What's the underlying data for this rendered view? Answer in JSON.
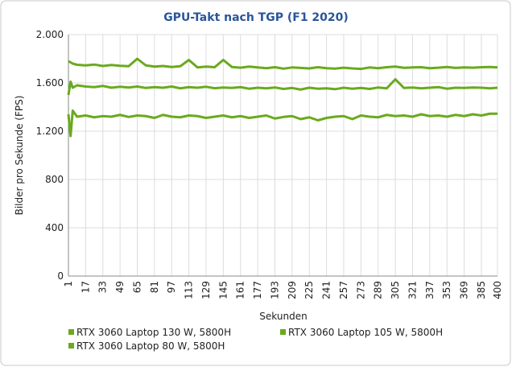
{
  "chart_data": {
    "type": "line",
    "title": "GPU-Takt nach TGP (F1 2020)",
    "x_label": "Sekunden",
    "y_label": "Bilder pro Sekunde (FPS)",
    "x": [
      1,
      3,
      5,
      9,
      17,
      25,
      33,
      41,
      49,
      57,
      65,
      73,
      81,
      89,
      97,
      105,
      113,
      121,
      129,
      137,
      145,
      153,
      161,
      169,
      177,
      185,
      193,
      201,
      209,
      217,
      225,
      233,
      241,
      249,
      257,
      265,
      273,
      281,
      289,
      297,
      305,
      313,
      321,
      329,
      337,
      345,
      353,
      361,
      369,
      377,
      385,
      393,
      400
    ],
    "series": [
      {
        "name": "RTX 3060 Laptop 130 W, 5800H",
        "color": "#6aaa1e",
        "values": [
          1780,
          1770,
          1760,
          1750,
          1745,
          1752,
          1740,
          1748,
          1742,
          1738,
          1800,
          1745,
          1735,
          1740,
          1732,
          1738,
          1790,
          1728,
          1735,
          1730,
          1790,
          1732,
          1726,
          1735,
          1728,
          1722,
          1730,
          1718,
          1728,
          1724,
          1720,
          1730,
          1722,
          1718,
          1726,
          1720,
          1716,
          1728,
          1722,
          1730,
          1735,
          1725,
          1728,
          1730,
          1722,
          1726,
          1732,
          1724,
          1728,
          1726,
          1730,
          1732,
          1728
        ]
      },
      {
        "name": "RTX 3060 Laptop 105 W, 5800H",
        "color": "#6aaa1e",
        "values": [
          1500,
          1610,
          1560,
          1580,
          1570,
          1565,
          1575,
          1560,
          1568,
          1562,
          1570,
          1558,
          1565,
          1560,
          1570,
          1555,
          1565,
          1560,
          1568,
          1556,
          1562,
          1558,
          1565,
          1552,
          1560,
          1555,
          1562,
          1550,
          1558,
          1545,
          1560,
          1552,
          1555,
          1548,
          1560,
          1552,
          1558,
          1550,
          1562,
          1555,
          1630,
          1558,
          1562,
          1555,
          1560,
          1565,
          1552,
          1560,
          1558,
          1562,
          1560,
          1555,
          1560
        ]
      },
      {
        "name": "RTX 3060 Laptop 80 W, 5800H",
        "color": "#6aaa1e",
        "values": [
          1340,
          1160,
          1370,
          1320,
          1330,
          1315,
          1325,
          1320,
          1335,
          1318,
          1330,
          1325,
          1310,
          1335,
          1320,
          1315,
          1330,
          1325,
          1310,
          1320,
          1330,
          1315,
          1325,
          1310,
          1320,
          1330,
          1305,
          1318,
          1325,
          1300,
          1315,
          1290,
          1310,
          1320,
          1325,
          1300,
          1330,
          1320,
          1315,
          1335,
          1325,
          1330,
          1320,
          1340,
          1325,
          1330,
          1320,
          1335,
          1325,
          1340,
          1330,
          1345,
          1345
        ]
      }
    ],
    "xlim": [
      1,
      400
    ],
    "xticks": [
      1,
      17,
      33,
      49,
      65,
      81,
      97,
      113,
      129,
      145,
      161,
      177,
      193,
      209,
      225,
      241,
      257,
      273,
      289,
      305,
      321,
      337,
      353,
      369,
      385,
      400
    ],
    "ylim": [
      0,
      2000
    ],
    "yticks": [
      0,
      400,
      800,
      {
        "value": 1200,
        "label": "1.200"
      },
      {
        "value": 1600,
        "label": "1.600"
      },
      {
        "value": 2000,
        "label": "2.000"
      }
    ],
    "grid": true
  }
}
